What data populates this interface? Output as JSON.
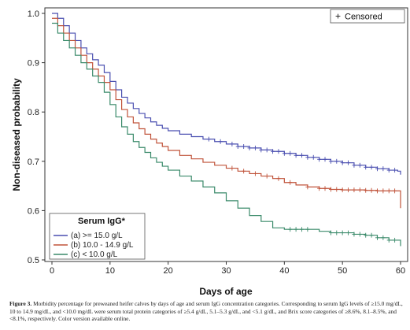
{
  "chart_data": {
    "type": "line",
    "title": "",
    "xlabel": "Days of age",
    "ylabel": "Non-diseased probability",
    "xlim": [
      0,
      60
    ],
    "ylim": [
      0.5,
      1.0
    ],
    "xticks": [
      "0",
      "10",
      "20",
      "30",
      "40",
      "50",
      "60"
    ],
    "yticks": [
      "0.5",
      "0.6",
      "0.7",
      "0.8",
      "0.9",
      "1.0"
    ],
    "grid": false,
    "censor_legend": {
      "symbol": "+",
      "label": "Censored",
      "placement": "top-right"
    },
    "legend": {
      "title": "Serum IgG*",
      "placement": "bottom-left"
    },
    "series": [
      {
        "name": "(a) >= 15.0 g/L",
        "color": "#4a4fb0",
        "x": [
          0,
          1,
          2,
          3,
          4,
          5,
          6,
          7,
          8,
          9,
          10,
          11,
          12,
          13,
          14,
          15,
          16,
          17,
          18,
          19,
          20,
          22,
          24,
          26,
          28,
          30,
          32,
          34,
          36,
          38,
          40,
          42,
          44,
          46,
          48,
          50,
          52,
          54,
          56,
          58,
          59.5,
          60
        ],
        "y": [
          1.0,
          0.99,
          0.975,
          0.96,
          0.945,
          0.93,
          0.918,
          0.906,
          0.895,
          0.88,
          0.862,
          0.845,
          0.83,
          0.818,
          0.807,
          0.797,
          0.788,
          0.78,
          0.773,
          0.767,
          0.762,
          0.755,
          0.75,
          0.745,
          0.74,
          0.735,
          0.73,
          0.727,
          0.723,
          0.72,
          0.716,
          0.712,
          0.708,
          0.704,
          0.7,
          0.697,
          0.692,
          0.688,
          0.685,
          0.682,
          0.68,
          0.673
        ],
        "censored_x": [
          27,
          29,
          31,
          32,
          33,
          34,
          35,
          36,
          37,
          38,
          39,
          40,
          41,
          42,
          43,
          44,
          45,
          46,
          47,
          48,
          49,
          50,
          51,
          52,
          53,
          54,
          55,
          56,
          57,
          58,
          59
        ]
      },
      {
        "name": "(b) 10.0 - 14.9 g/L",
        "color": "#c0533a",
        "x": [
          0,
          1,
          2,
          3,
          4,
          5,
          6,
          7,
          8,
          9,
          10,
          11,
          12,
          13,
          14,
          15,
          16,
          17,
          18,
          19,
          20,
          22,
          24,
          26,
          28,
          30,
          32,
          34,
          36,
          38,
          40,
          42,
          44,
          46,
          48,
          50,
          52,
          54,
          56,
          58,
          59.5,
          60
        ],
        "y": [
          0.99,
          0.975,
          0.96,
          0.945,
          0.93,
          0.915,
          0.9,
          0.887,
          0.873,
          0.86,
          0.845,
          0.825,
          0.805,
          0.79,
          0.778,
          0.766,
          0.755,
          0.745,
          0.737,
          0.73,
          0.722,
          0.712,
          0.705,
          0.698,
          0.692,
          0.686,
          0.68,
          0.675,
          0.67,
          0.665,
          0.657,
          0.652,
          0.648,
          0.645,
          0.643,
          0.642,
          0.642,
          0.641,
          0.64,
          0.64,
          0.64,
          0.605
        ],
        "censored_x": [
          31,
          33,
          35,
          37,
          39,
          41,
          44,
          46,
          47,
          48,
          49,
          50,
          51,
          52,
          53,
          54,
          55,
          56,
          57,
          58,
          59
        ]
      },
      {
        "name": "(c) < 10.0 g/L",
        "color": "#3a8a6a",
        "x": [
          0,
          1,
          2,
          3,
          4,
          5,
          6,
          7,
          8,
          9,
          10,
          11,
          12,
          13,
          14,
          15,
          16,
          17,
          18,
          19,
          20,
          22,
          24,
          26,
          28,
          30,
          32,
          34,
          36,
          38,
          40,
          42,
          44,
          46,
          48,
          50,
          52,
          54,
          56,
          58,
          59.5,
          60
        ],
        "y": [
          0.98,
          0.96,
          0.945,
          0.93,
          0.915,
          0.9,
          0.887,
          0.873,
          0.86,
          0.84,
          0.815,
          0.79,
          0.77,
          0.755,
          0.74,
          0.728,
          0.718,
          0.707,
          0.698,
          0.69,
          0.682,
          0.67,
          0.66,
          0.648,
          0.636,
          0.62,
          0.605,
          0.59,
          0.578,
          0.565,
          0.562,
          0.562,
          0.562,
          0.558,
          0.555,
          0.555,
          0.552,
          0.55,
          0.545,
          0.54,
          0.54,
          0.528
        ],
        "censored_x": [
          41,
          42,
          43,
          44,
          48,
          49,
          50,
          51,
          52,
          53,
          54,
          55,
          56,
          57,
          58,
          59
        ]
      }
    ]
  },
  "caption": {
    "label": "Figure 3.",
    "text": "Morbidity percentage for preweaned heifer calves by days of age and serum IgG concentration categories. Corresponding to serum IgG levels of ≥15.0 mg/dL, 10 to 14.9 mg/dL, and <10.0 mg/dL were serum total protein categories of ≥5.4 g/dL, 5.1–5.3 g/dL, and <5.1 g/dL, and Brix score categories of ≥8.6%, 8.1–8.5%, and <8.1%, respectively. Color version available online."
  }
}
